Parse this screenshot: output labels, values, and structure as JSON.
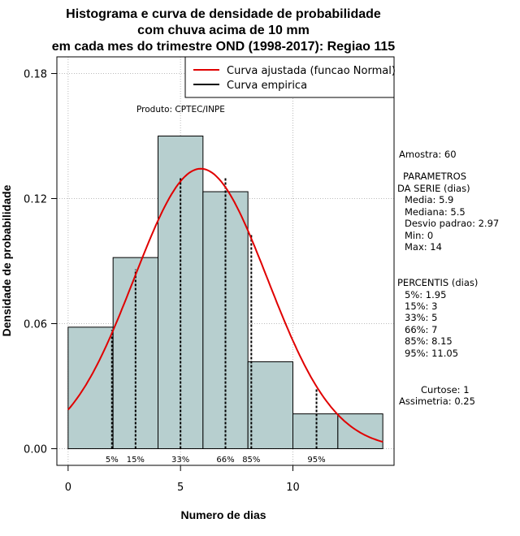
{
  "chart_data": {
    "type": "bar",
    "title_lines": [
      "Histograma e curva de densidade de probabilidade",
      "com chuva acima de 10 mm",
      "em cada mes do trimestre OND (1998-2017): Regiao 115"
    ],
    "xlabel": "Numero de dias",
    "ylabel": "Densidade de probabilidade",
    "xlim": [
      -0.5,
      14.5
    ],
    "ylim": [
      -0.008,
      0.188
    ],
    "xticks": [
      0,
      5,
      10
    ],
    "yticks": [
      0.0,
      0.06,
      0.12,
      0.18
    ],
    "ytick_labels": [
      "0.00",
      "0.06",
      "0.12",
      "0.18"
    ],
    "grid": true,
    "bins": [
      {
        "x0": 0,
        "x1": 2,
        "density": 0.0583
      },
      {
        "x0": 2,
        "x1": 4,
        "density": 0.0917
      },
      {
        "x0": 4,
        "x1": 6,
        "density": 0.15
      },
      {
        "x0": 6,
        "x1": 8,
        "density": 0.1233
      },
      {
        "x0": 8,
        "x1": 10,
        "density": 0.0417
      },
      {
        "x0": 10,
        "x1": 12,
        "density": 0.0167
      },
      {
        "x0": 12,
        "x1": 14,
        "density": 0.0167
      }
    ],
    "normal_curve": {
      "mean": 5.9,
      "sd": 2.97,
      "xmin": 0,
      "xmax": 14
    },
    "percentiles": [
      {
        "label": "5%",
        "x": 1.95,
        "height": 0.057
      },
      {
        "label": "15%",
        "x": 3,
        "height": 0.086
      },
      {
        "label": "33%",
        "x": 5,
        "height": 0.13
      },
      {
        "label": "66%",
        "x": 7,
        "height": 0.13
      },
      {
        "label": "85%",
        "x": 8.15,
        "height": 0.103
      },
      {
        "label": "95%",
        "x": 11.05,
        "height": 0.029
      }
    ],
    "legend": {
      "placement": "top-right",
      "entries": [
        {
          "label": "Curva ajustada (funcao Normal)",
          "color": "#e00000"
        },
        {
          "label": "Curva empirica",
          "color": "#000000"
        }
      ]
    },
    "credit": "Produto: CPTEC/INPE"
  },
  "stats_panel": {
    "amostra": "Amostra: 60",
    "param_title1": "PARAMETROS",
    "param_title2": "DA SERIE (dias)",
    "media": "Media: 5.9",
    "mediana": "Mediana: 5.5",
    "desvio": "Desvio padrao: 2.97",
    "min": "Min: 0",
    "max": "Max: 14",
    "perc_title": "PERCENTIS (dias)",
    "p5": "5%: 1.95",
    "p15": "15%: 3",
    "p33": "33%: 5",
    "p66": "66%: 7",
    "p85": "85%: 8.15",
    "p95": "95%: 11.05",
    "curtose": "Curtose: 1",
    "assimetria": "Assimetria: 0.25"
  },
  "colors": {
    "bar_fill": "#b7cfcf",
    "bar_stroke": "#000000",
    "curve": "#e00000",
    "grid": "#bbbbbb"
  }
}
